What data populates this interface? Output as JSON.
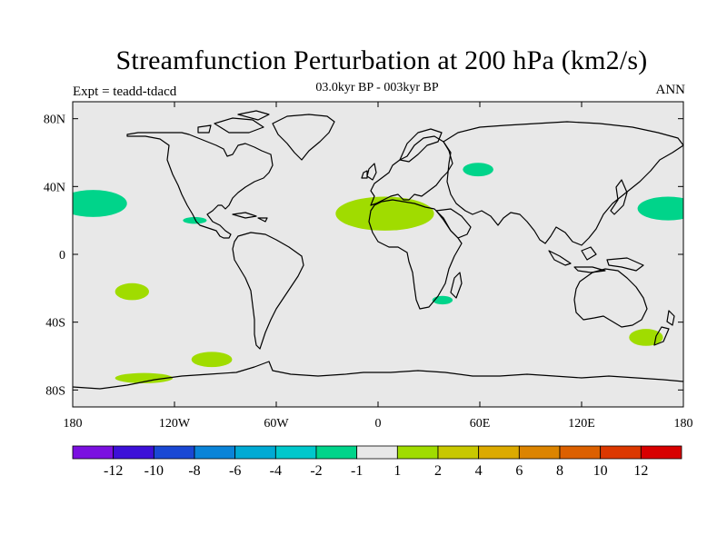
{
  "header": {
    "title": "Streamfunction Perturbation at 200 hPa (km2/s)",
    "left_label": "Expt = teadd-tdacd",
    "center_label": "03.0kyr BP - 003kyr BP",
    "right_label": "ANN"
  },
  "chart_data": {
    "type": "map",
    "projection": "cylindrical-equidistant",
    "xlim": [
      -180,
      180
    ],
    "ylim": [
      -90,
      90
    ],
    "x_ticks": [
      {
        "value": -180,
        "label": "180"
      },
      {
        "value": -120,
        "label": "120W"
      },
      {
        "value": -60,
        "label": "60W"
      },
      {
        "value": 0,
        "label": "0"
      },
      {
        "value": 60,
        "label": "60E"
      },
      {
        "value": 120,
        "label": "120E"
      },
      {
        "value": 180,
        "label": "180"
      }
    ],
    "y_ticks": [
      {
        "value": 80,
        "label": "80N"
      },
      {
        "value": 40,
        "label": "40N"
      },
      {
        "value": 0,
        "label": "0"
      },
      {
        "value": -40,
        "label": "40S"
      },
      {
        "value": -80,
        "label": "80S"
      }
    ],
    "background_color": "#e8e8e8",
    "coastline_color": "#000000",
    "anomaly_regions": [
      {
        "name": "north-pacific-west",
        "lon": -168,
        "lat": 30,
        "rlon": 20,
        "rlat": 8,
        "level": "-2 to -1",
        "color": "#00d48a"
      },
      {
        "name": "central-america",
        "lon": -108,
        "lat": 20,
        "rlon": 7,
        "rlat": 2,
        "level": "-2 to -1",
        "color": "#00d48a"
      },
      {
        "name": "kazakhstan",
        "lon": 59,
        "lat": 50,
        "rlon": 9,
        "rlat": 4,
        "level": "-2 to -1",
        "color": "#00d48a"
      },
      {
        "name": "north-pacific-east",
        "lon": 171,
        "lat": 27,
        "rlon": 18,
        "rlat": 7,
        "level": "-2 to -1",
        "color": "#00d48a"
      },
      {
        "name": "southern-africa",
        "lon": 38,
        "lat": -27,
        "rlon": 6,
        "rlat": 2.5,
        "level": "-2 to -1",
        "color": "#00d48a"
      },
      {
        "name": "sahara",
        "lon": 4,
        "lat": 24,
        "rlon": 29,
        "rlat": 10,
        "level": "1 to 2",
        "color": "#a0dc00"
      },
      {
        "name": "south-pacific",
        "lon": -145,
        "lat": -22,
        "rlon": 10,
        "rlat": 5,
        "level": "1 to 2",
        "color": "#a0dc00"
      },
      {
        "name": "tasman-sea",
        "lon": 158,
        "lat": -49,
        "rlon": 10,
        "rlat": 5,
        "level": "1 to 2",
        "color": "#a0dc00"
      },
      {
        "name": "southern-ocean-pacific",
        "lon": -98,
        "lat": -62,
        "rlon": 12,
        "rlat": 4.5,
        "level": "1 to 2",
        "color": "#a0dc00"
      },
      {
        "name": "antarctic-coast",
        "lon": -138,
        "lat": -73,
        "rlon": 17,
        "rlat": 3,
        "level": "1 to 2",
        "color": "#a0dc00"
      }
    ],
    "colorbar": {
      "orientation": "horizontal",
      "colors": [
        "#7b10e0",
        "#3d10d8",
        "#1a48d4",
        "#0a84d8",
        "#00aad4",
        "#00c8cc",
        "#00d48a",
        "#e8e8e8",
        "#a0dc00",
        "#c8c800",
        "#dcaa00",
        "#dc8400",
        "#dc6000",
        "#dc3800",
        "#d80000"
      ],
      "tick_labels": [
        "-12",
        "-10",
        "-8",
        "-6",
        "-4",
        "-2",
        "-1",
        "1",
        "2",
        "4",
        "6",
        "8",
        "10",
        "12"
      ]
    }
  }
}
